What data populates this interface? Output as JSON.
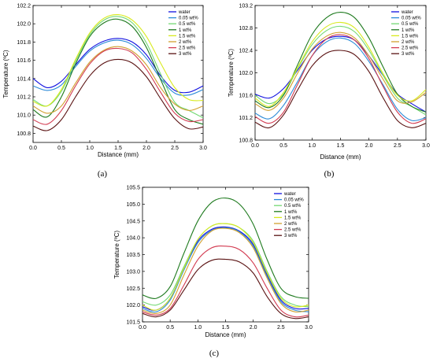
{
  "figure": {
    "panel_labels": [
      "(a)",
      "(b)",
      "(c)"
    ]
  },
  "chart_data": [
    {
      "type": "line",
      "panel": "(a)",
      "xlabel": "Distance (mm)",
      "ylabel": "Temperature (ºC)",
      "xlim": [
        0.0,
        3.0
      ],
      "ylim": [
        100.7,
        102.2
      ],
      "xticks": [
        "0.0",
        "0.5",
        "1.0",
        "1.5",
        "2.0",
        "2.5",
        "3.0"
      ],
      "yticks": [
        "100.8",
        "101.0",
        "101.2",
        "101.4",
        "101.6",
        "101.8",
        "102.0",
        "102.2"
      ],
      "legend_position": "top-right",
      "x": [
        0.0,
        0.25,
        0.5,
        0.75,
        1.0,
        1.25,
        1.5,
        1.75,
        2.0,
        2.25,
        2.5,
        2.75,
        3.0
      ],
      "series": [
        {
          "name": "water",
          "color": "#1010e0",
          "values": [
            101.4,
            101.3,
            101.37,
            101.55,
            101.72,
            101.81,
            101.84,
            101.8,
            101.66,
            101.43,
            101.27,
            101.25,
            101.32
          ]
        },
        {
          "name": "0.05 wt%",
          "color": "#2a8ad8",
          "values": [
            101.32,
            101.27,
            101.33,
            101.53,
            101.7,
            101.79,
            101.82,
            101.77,
            101.62,
            101.4,
            101.24,
            101.22,
            101.28
          ]
        },
        {
          "name": "0.5 wt%",
          "color": "#72d872",
          "values": [
            101.17,
            101.1,
            101.26,
            101.59,
            101.88,
            102.04,
            102.08,
            102.01,
            101.79,
            101.45,
            101.14,
            101.05,
            100.97
          ]
        },
        {
          "name": "1 wt%",
          "color": "#1e7a1e",
          "values": [
            101.06,
            100.98,
            101.2,
            101.56,
            101.86,
            102.01,
            102.05,
            101.97,
            101.74,
            101.39,
            101.06,
            100.95,
            100.9
          ]
        },
        {
          "name": "1.5 wt%",
          "color": "#d8ea1e",
          "values": [
            101.15,
            101.1,
            101.28,
            101.61,
            101.9,
            102.06,
            102.1,
            102.04,
            101.86,
            101.57,
            101.3,
            101.17,
            101.16
          ]
        },
        {
          "name": "2 wt%",
          "color": "#d2a030",
          "values": [
            101.1,
            101.02,
            101.1,
            101.35,
            101.58,
            101.71,
            101.75,
            101.7,
            101.55,
            101.3,
            101.12,
            101.05,
            101.1
          ]
        },
        {
          "name": "2.5 wt%",
          "color": "#d23a50",
          "values": [
            100.95,
            100.9,
            101.05,
            101.32,
            101.56,
            101.7,
            101.73,
            101.68,
            101.5,
            101.25,
            101.02,
            100.93,
            100.95
          ]
        },
        {
          "name": "3 wt%",
          "color": "#5a1212",
          "values": [
            100.88,
            100.83,
            100.95,
            101.2,
            101.43,
            101.57,
            101.61,
            101.57,
            101.42,
            101.18,
            100.96,
            100.85,
            100.87
          ]
        }
      ]
    },
    {
      "type": "line",
      "panel": "(b)",
      "xlabel": "Distance (mm)",
      "ylabel": "Temperature (ºC)",
      "xlim": [
        0.0,
        3.0
      ],
      "ylim": [
        100.8,
        103.2
      ],
      "xticks": [
        "0.0",
        "0.5",
        "1.0",
        "1.5",
        "2.0",
        "2.5",
        "3.0"
      ],
      "yticks": [
        "100.8",
        "101.2",
        "101.6",
        "102.0",
        "102.4",
        "102.8",
        "103.2"
      ],
      "legend_position": "top-right",
      "x": [
        0.0,
        0.25,
        0.5,
        0.75,
        1.0,
        1.25,
        1.5,
        1.75,
        2.0,
        2.25,
        2.5,
        2.75,
        3.0
      ],
      "series": [
        {
          "name": "water",
          "color": "#1010e0",
          "values": [
            101.62,
            101.55,
            101.72,
            102.05,
            102.4,
            102.6,
            102.65,
            102.58,
            102.3,
            101.95,
            101.62,
            101.45,
            101.3
          ]
        },
        {
          "name": "0.05 wt%",
          "color": "#2a8ad8",
          "values": [
            101.28,
            101.18,
            101.42,
            101.85,
            102.3,
            102.55,
            102.62,
            102.52,
            102.2,
            101.78,
            101.35,
            101.15,
            101.2
          ]
        },
        {
          "name": "0.5 wt%",
          "color": "#72d872",
          "values": [
            101.6,
            101.45,
            101.62,
            102.08,
            102.5,
            102.75,
            102.83,
            102.73,
            102.4,
            101.95,
            101.55,
            101.4,
            101.25
          ]
        },
        {
          "name": "1 wt%",
          "color": "#1e7a1e",
          "values": [
            101.5,
            101.38,
            101.6,
            102.15,
            102.68,
            102.98,
            103.08,
            102.98,
            102.62,
            102.1,
            101.62,
            101.4,
            101.3
          ]
        },
        {
          "name": "1.5 wt%",
          "color": "#d8ea1e",
          "values": [
            101.55,
            101.4,
            101.65,
            102.1,
            102.55,
            102.82,
            102.9,
            102.8,
            102.45,
            101.98,
            101.6,
            101.5,
            101.7
          ]
        },
        {
          "name": "2 wt%",
          "color": "#d2a030",
          "values": [
            101.45,
            101.33,
            101.55,
            102.0,
            102.42,
            102.65,
            102.72,
            102.62,
            102.3,
            101.88,
            101.5,
            101.48,
            101.65
          ]
        },
        {
          "name": "2.5 wt%",
          "color": "#d23a50",
          "values": [
            101.22,
            101.1,
            101.3,
            101.8,
            102.3,
            102.6,
            102.68,
            102.58,
            102.25,
            101.75,
            101.3,
            101.1,
            101.18
          ]
        },
        {
          "name": "3 wt%",
          "color": "#5a1212",
          "values": [
            101.12,
            101.02,
            101.25,
            101.7,
            102.12,
            102.35,
            102.4,
            102.32,
            102.02,
            101.55,
            101.15,
            101.02,
            101.1
          ]
        }
      ]
    },
    {
      "type": "line",
      "panel": "(c)",
      "xlabel": "Distance (mm)",
      "ylabel": "Temperature (ºC)",
      "xlim": [
        0.0,
        3.0
      ],
      "ylim": [
        101.5,
        105.5
      ],
      "xticks": [
        "0.0",
        "0.5",
        "1.0",
        "1.5",
        "2.0",
        "2.5",
        "3.0"
      ],
      "yticks": [
        "101.5",
        "102.0",
        "102.5",
        "103.0",
        "103.5",
        "104.0",
        "104.5",
        "105.0",
        "105.5"
      ],
      "legend_position": "top-right",
      "x": [
        0.0,
        0.25,
        0.5,
        0.75,
        1.0,
        1.25,
        1.5,
        1.75,
        2.0,
        2.25,
        2.5,
        2.75,
        3.0
      ],
      "series": [
        {
          "name": "water",
          "color": "#1010e0",
          "values": [
            101.95,
            101.85,
            102.2,
            103.1,
            103.9,
            104.25,
            104.32,
            104.2,
            103.8,
            102.9,
            102.15,
            101.9,
            101.9
          ]
        },
        {
          "name": "0.05 wt%",
          "color": "#2a8ad8",
          "values": [
            101.9,
            101.8,
            102.15,
            103.05,
            103.85,
            104.22,
            104.3,
            104.18,
            103.75,
            102.85,
            102.1,
            101.85,
            101.8
          ]
        },
        {
          "name": "0.5 wt%",
          "color": "#72d872",
          "values": [
            102.1,
            102.0,
            102.3,
            103.15,
            103.95,
            104.35,
            104.42,
            104.3,
            103.9,
            103.0,
            102.25,
            102.0,
            101.95
          ]
        },
        {
          "name": "1 wt%",
          "color": "#1e7a1e",
          "values": [
            102.3,
            102.2,
            102.55,
            103.55,
            104.5,
            105.05,
            105.18,
            105.0,
            104.4,
            103.35,
            102.5,
            102.25,
            102.2
          ]
        },
        {
          "name": "1.5 wt%",
          "color": "#d8ea1e",
          "values": [
            102.0,
            101.85,
            102.2,
            103.1,
            103.95,
            104.35,
            104.42,
            104.3,
            103.85,
            102.95,
            102.2,
            101.95,
            102.0
          ]
        },
        {
          "name": "2 wt%",
          "color": "#d2a030",
          "values": [
            101.85,
            101.75,
            102.0,
            102.9,
            103.75,
            104.2,
            104.28,
            104.15,
            103.7,
            102.8,
            102.05,
            101.8,
            101.85
          ]
        },
        {
          "name": "2.5 wt%",
          "color": "#d23a50",
          "values": [
            101.8,
            101.7,
            101.9,
            102.6,
            103.35,
            103.7,
            103.75,
            103.65,
            103.25,
            102.5,
            101.85,
            101.65,
            101.7
          ]
        },
        {
          "name": "3 wt%",
          "color": "#5a1212",
          "values": [
            101.75,
            101.65,
            101.85,
            102.45,
            103.05,
            103.33,
            103.36,
            103.28,
            102.95,
            102.25,
            101.75,
            101.6,
            101.65
          ]
        }
      ]
    }
  ]
}
